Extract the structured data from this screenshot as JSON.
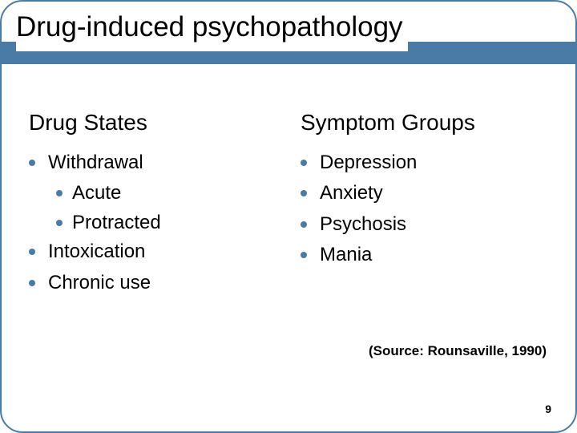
{
  "title": "Drug-induced psychopathology",
  "columns": {
    "left": {
      "heading": "Drug States",
      "items": [
        {
          "label": "Withdrawal",
          "subitems": [
            "Acute",
            "Protracted"
          ]
        },
        {
          "label": "Intoxication"
        },
        {
          "label": "Chronic use"
        }
      ]
    },
    "right": {
      "heading": "Symptom Groups",
      "items": [
        {
          "label": "Depression"
        },
        {
          "label": "Anxiety"
        },
        {
          "label": "Psychosis"
        },
        {
          "label": "Mania"
        }
      ]
    }
  },
  "source": "(Source: Rounsaville, 1990)",
  "slide_number": "9",
  "colors": {
    "accent": "#4a7ba6",
    "text": "#000000",
    "background": "#ffffff"
  },
  "typography": {
    "title_fontsize": 35,
    "heading_fontsize": 28,
    "body_fontsize": 24,
    "source_fontsize": 17,
    "slidenum_fontsize": 14
  }
}
